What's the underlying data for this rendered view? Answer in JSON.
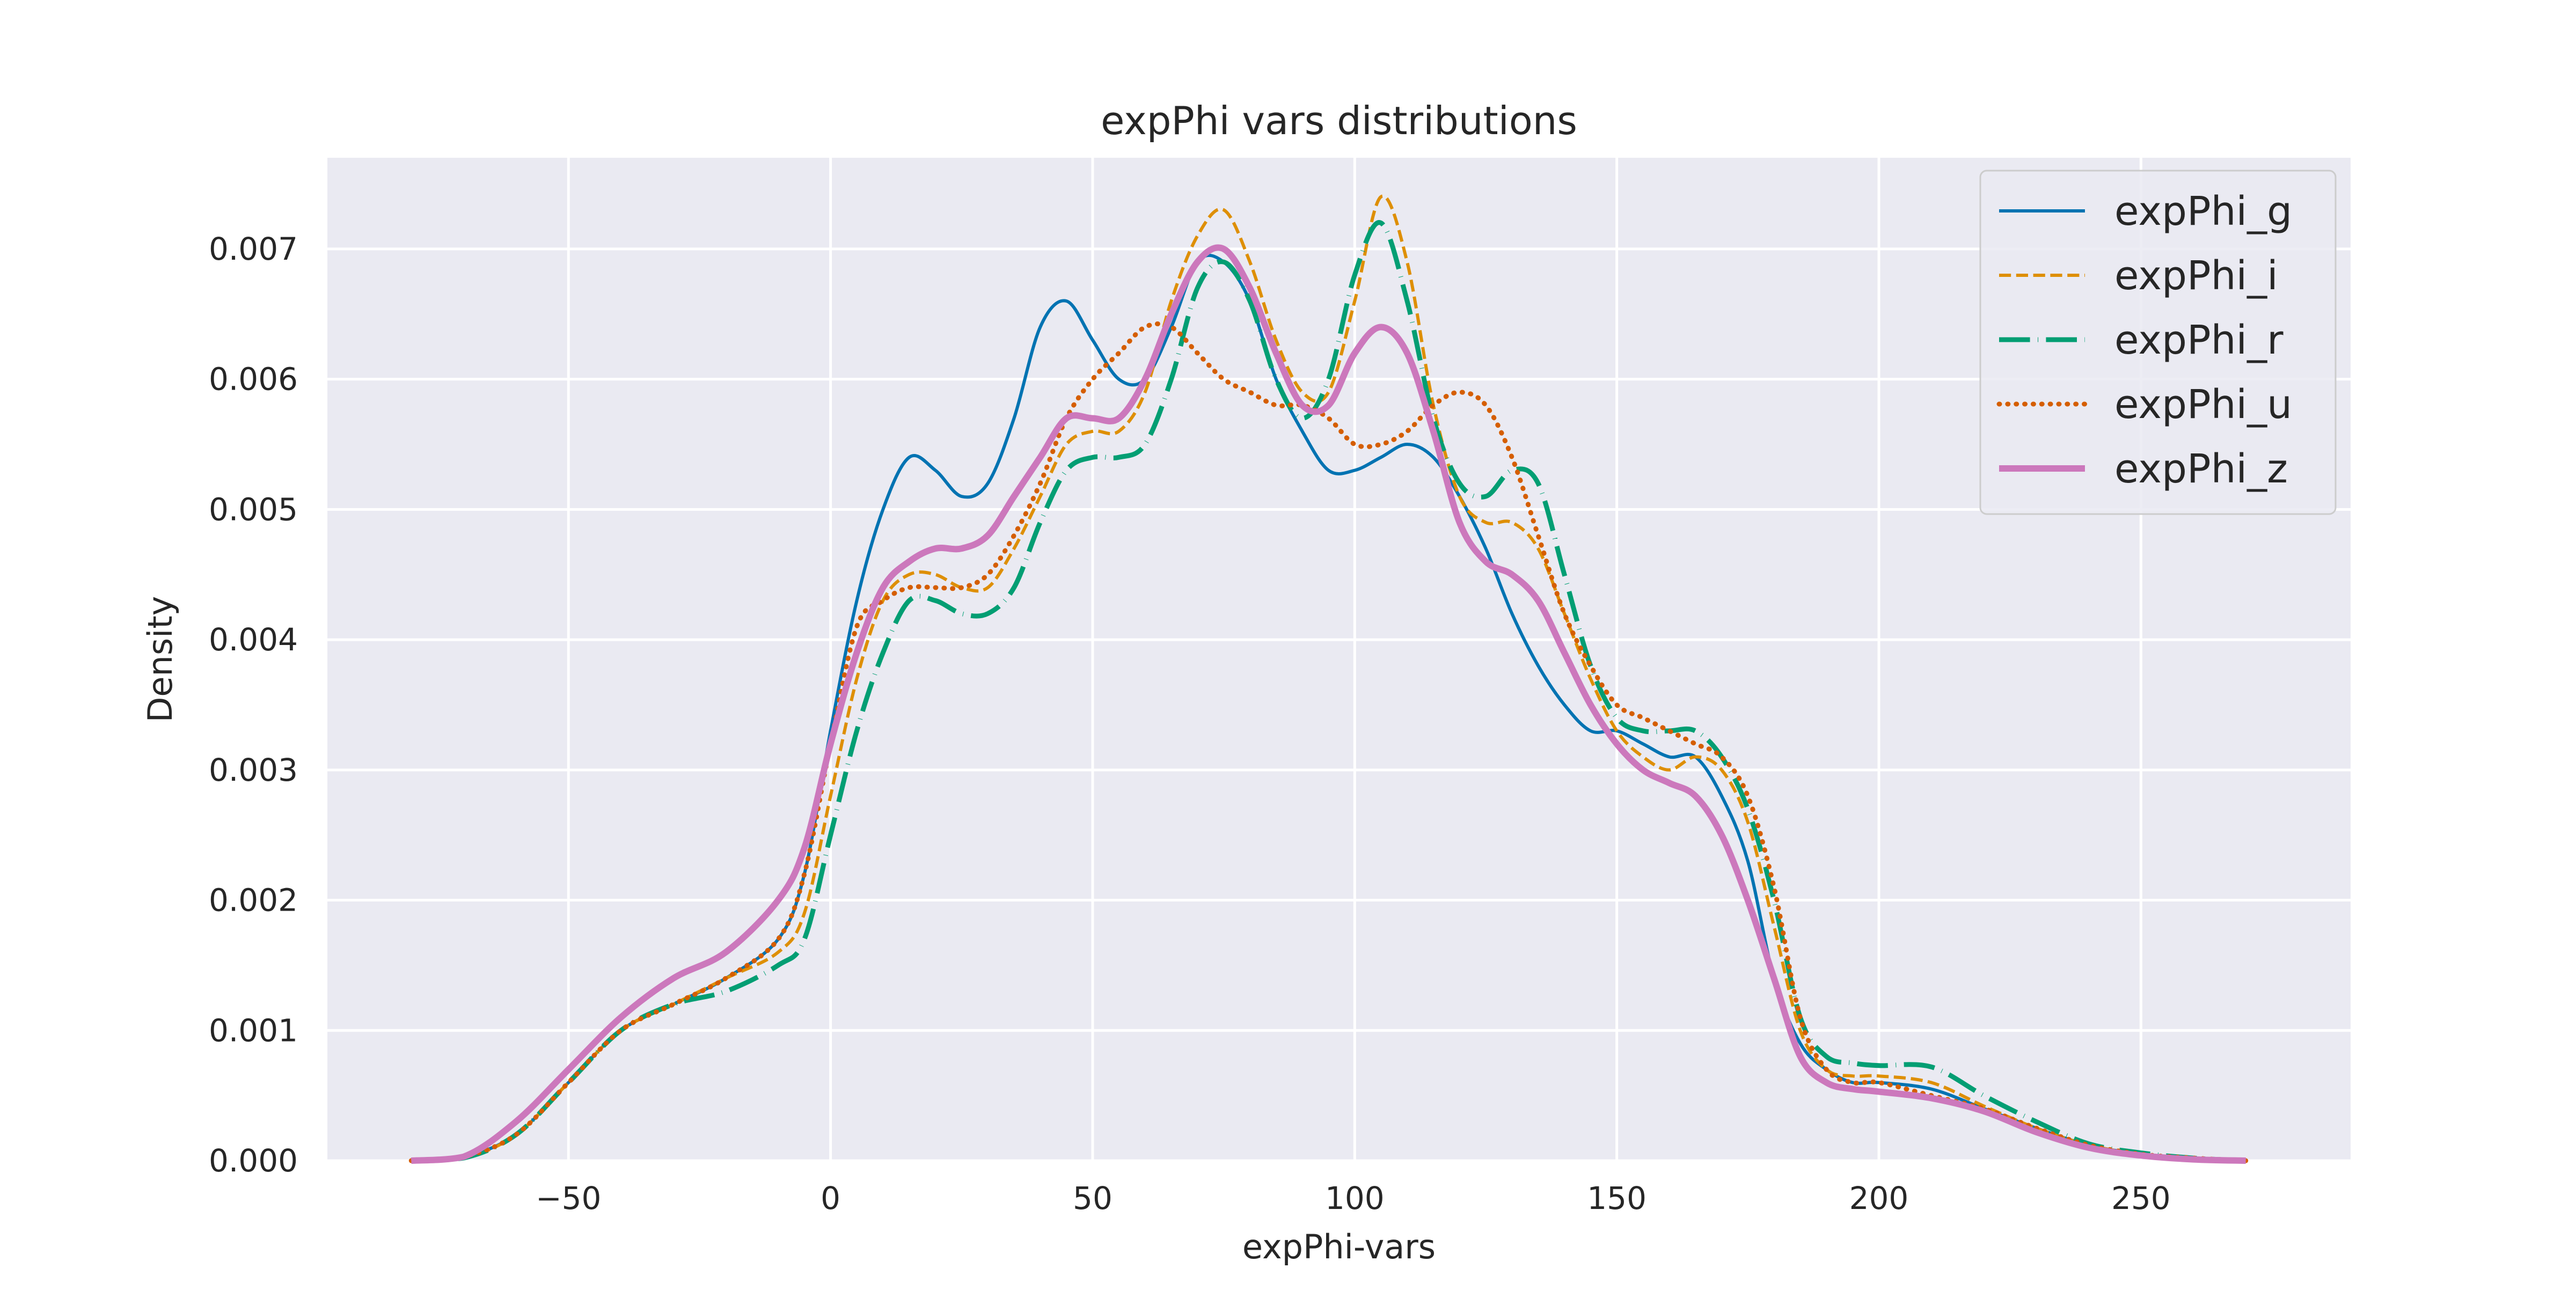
{
  "chart_data": {
    "type": "line",
    "title": "expPhi vars distributions",
    "xlabel": "expPhi-vars",
    "ylabel": "Density",
    "xlim": [
      -96,
      290
    ],
    "ylim": [
      0,
      0.0077
    ],
    "xticks": [
      -50,
      0,
      50,
      100,
      150,
      200,
      250
    ],
    "xtick_labels": [
      "−50",
      "0",
      "50",
      "100",
      "150",
      "200",
      "250"
    ],
    "yticks": [
      0,
      0.001,
      0.002,
      0.003,
      0.004,
      0.005,
      0.006,
      0.007
    ],
    "ytick_labels": [
      "0.000",
      "0.001",
      "0.002",
      "0.003",
      "0.004",
      "0.005",
      "0.006",
      "0.007"
    ],
    "grid": true,
    "legend_position": "top-right",
    "background": "#eaeaf2",
    "series": [
      {
        "name": "expPhi_g",
        "color": "#0173b2",
        "dash": "solid",
        "width": "thin",
        "x": [
          -80,
          -70,
          -60,
          -50,
          -40,
          -30,
          -20,
          -10,
          -5,
          0,
          5,
          10,
          15,
          20,
          25,
          30,
          35,
          40,
          45,
          50,
          55,
          60,
          65,
          70,
          75,
          80,
          85,
          90,
          95,
          100,
          105,
          110,
          115,
          120,
          125,
          130,
          135,
          140,
          145,
          150,
          155,
          160,
          165,
          170,
          175,
          180,
          185,
          190,
          195,
          200,
          210,
          220,
          230,
          240,
          250,
          260,
          270
        ],
        "y": [
          0,
          3e-05,
          0.0002,
          0.0006,
          0.001,
          0.0012,
          0.0014,
          0.0017,
          0.0022,
          0.0033,
          0.0043,
          0.005,
          0.0054,
          0.0053,
          0.0051,
          0.0052,
          0.0057,
          0.0064,
          0.0066,
          0.0063,
          0.006,
          0.006,
          0.0064,
          0.0069,
          0.0069,
          0.0066,
          0.006,
          0.0056,
          0.0053,
          0.0053,
          0.0054,
          0.0055,
          0.0054,
          0.0051,
          0.0047,
          0.0042,
          0.0038,
          0.0035,
          0.0033,
          0.0033,
          0.0032,
          0.0031,
          0.0031,
          0.0028,
          0.0023,
          0.0014,
          0.0009,
          0.0007,
          0.0006,
          0.0006,
          0.00055,
          0.0004,
          0.00025,
          0.00012,
          5e-05,
          2e-05,
          0
        ]
      },
      {
        "name": "expPhi_i",
        "color": "#de8f05",
        "dash": "dashed",
        "width": "thin",
        "x": [
          -80,
          -70,
          -60,
          -50,
          -40,
          -30,
          -20,
          -10,
          -5,
          0,
          5,
          10,
          15,
          20,
          25,
          30,
          35,
          40,
          45,
          50,
          55,
          60,
          65,
          70,
          75,
          80,
          85,
          90,
          95,
          100,
          105,
          110,
          115,
          120,
          125,
          130,
          135,
          140,
          145,
          150,
          155,
          160,
          165,
          170,
          175,
          180,
          185,
          190,
          195,
          200,
          210,
          220,
          230,
          240,
          250,
          260,
          270
        ],
        "y": [
          0,
          2e-05,
          0.0002,
          0.0006,
          0.001,
          0.0012,
          0.0014,
          0.0016,
          0.0019,
          0.0028,
          0.0037,
          0.0043,
          0.0045,
          0.0045,
          0.0044,
          0.0044,
          0.0047,
          0.0051,
          0.0055,
          0.0056,
          0.0056,
          0.0059,
          0.0066,
          0.0071,
          0.0073,
          0.0069,
          0.0063,
          0.0059,
          0.0059,
          0.0066,
          0.0074,
          0.0069,
          0.0058,
          0.0051,
          0.0049,
          0.0049,
          0.0047,
          0.0042,
          0.0037,
          0.0033,
          0.0031,
          0.003,
          0.0031,
          0.003,
          0.0026,
          0.0018,
          0.001,
          0.0007,
          0.00065,
          0.00065,
          0.0006,
          0.00042,
          0.00025,
          0.00012,
          5e-05,
          2e-05,
          0
        ]
      },
      {
        "name": "expPhi_r",
        "color": "#029e73",
        "dash": "dashdot",
        "width": "thick",
        "x": [
          -80,
          -70,
          -60,
          -50,
          -40,
          -30,
          -20,
          -10,
          -5,
          0,
          5,
          10,
          15,
          20,
          25,
          30,
          35,
          40,
          45,
          50,
          55,
          60,
          65,
          70,
          75,
          80,
          85,
          90,
          95,
          100,
          105,
          110,
          115,
          120,
          125,
          130,
          135,
          140,
          145,
          150,
          155,
          160,
          165,
          170,
          175,
          180,
          185,
          190,
          195,
          200,
          210,
          220,
          230,
          240,
          250,
          260,
          270
        ],
        "y": [
          0,
          2e-05,
          0.0002,
          0.0006,
          0.001,
          0.0012,
          0.0013,
          0.0015,
          0.0017,
          0.0025,
          0.0033,
          0.0039,
          0.0043,
          0.0043,
          0.0042,
          0.0042,
          0.0044,
          0.0049,
          0.0053,
          0.0054,
          0.0054,
          0.0055,
          0.006,
          0.0067,
          0.0069,
          0.0066,
          0.006,
          0.0057,
          0.006,
          0.0068,
          0.0072,
          0.0066,
          0.0057,
          0.0052,
          0.0051,
          0.0053,
          0.0052,
          0.0045,
          0.0038,
          0.0034,
          0.0033,
          0.0033,
          0.0033,
          0.0031,
          0.0027,
          0.002,
          0.0011,
          0.0008,
          0.00075,
          0.00073,
          0.00072,
          0.0005,
          0.0003,
          0.00013,
          6e-05,
          2e-05,
          0
        ]
      },
      {
        "name": "expPhi_u",
        "color": "#d55e00",
        "dash": "dotted",
        "width": "thick",
        "x": [
          -80,
          -70,
          -60,
          -50,
          -40,
          -30,
          -20,
          -10,
          -5,
          0,
          5,
          10,
          15,
          20,
          25,
          30,
          35,
          40,
          45,
          50,
          55,
          60,
          65,
          70,
          75,
          80,
          85,
          90,
          95,
          100,
          105,
          110,
          115,
          120,
          125,
          130,
          135,
          140,
          145,
          150,
          155,
          160,
          165,
          170,
          175,
          180,
          185,
          190,
          195,
          200,
          210,
          220,
          230,
          240,
          250,
          260,
          270
        ],
        "y": [
          0,
          3e-05,
          0.0002,
          0.0006,
          0.001,
          0.0012,
          0.0014,
          0.0017,
          0.0022,
          0.0032,
          0.0041,
          0.0043,
          0.0044,
          0.0044,
          0.0044,
          0.0045,
          0.0048,
          0.0052,
          0.0057,
          0.006,
          0.0062,
          0.0064,
          0.0064,
          0.0062,
          0.006,
          0.0059,
          0.0058,
          0.0058,
          0.0057,
          0.0055,
          0.0055,
          0.0056,
          0.0058,
          0.0059,
          0.0058,
          0.0054,
          0.0048,
          0.0042,
          0.0038,
          0.0035,
          0.0034,
          0.0033,
          0.0032,
          0.0031,
          0.0028,
          0.0021,
          0.0011,
          0.0007,
          0.0006,
          0.0006,
          0.0005,
          0.0004,
          0.00025,
          0.00012,
          5e-05,
          2e-05,
          0
        ]
      },
      {
        "name": "expPhi_z",
        "color": "#cc78bc",
        "dash": "solid",
        "width": "thicker",
        "x": [
          -80,
          -70,
          -60,
          -50,
          -40,
          -30,
          -20,
          -10,
          -5,
          0,
          5,
          10,
          15,
          20,
          25,
          30,
          35,
          40,
          45,
          50,
          55,
          60,
          65,
          70,
          75,
          80,
          85,
          90,
          95,
          100,
          105,
          110,
          115,
          120,
          125,
          130,
          135,
          140,
          145,
          150,
          155,
          160,
          165,
          170,
          175,
          180,
          185,
          190,
          195,
          200,
          210,
          220,
          230,
          240,
          250,
          260,
          270
        ],
        "y": [
          0,
          3e-05,
          0.0003,
          0.0007,
          0.0011,
          0.0014,
          0.0016,
          0.002,
          0.0024,
          0.0032,
          0.0039,
          0.0044,
          0.0046,
          0.0047,
          0.0047,
          0.0048,
          0.0051,
          0.0054,
          0.0057,
          0.0057,
          0.0057,
          0.006,
          0.0065,
          0.0069,
          0.007,
          0.0067,
          0.0062,
          0.0058,
          0.0058,
          0.0062,
          0.0064,
          0.0062,
          0.0056,
          0.0049,
          0.0046,
          0.0045,
          0.0043,
          0.0039,
          0.0035,
          0.0032,
          0.003,
          0.0029,
          0.0028,
          0.0025,
          0.002,
          0.0014,
          0.0008,
          0.0006,
          0.00055,
          0.00053,
          0.00048,
          0.00038,
          0.00022,
          0.0001,
          4e-05,
          1e-05,
          0
        ]
      }
    ]
  }
}
